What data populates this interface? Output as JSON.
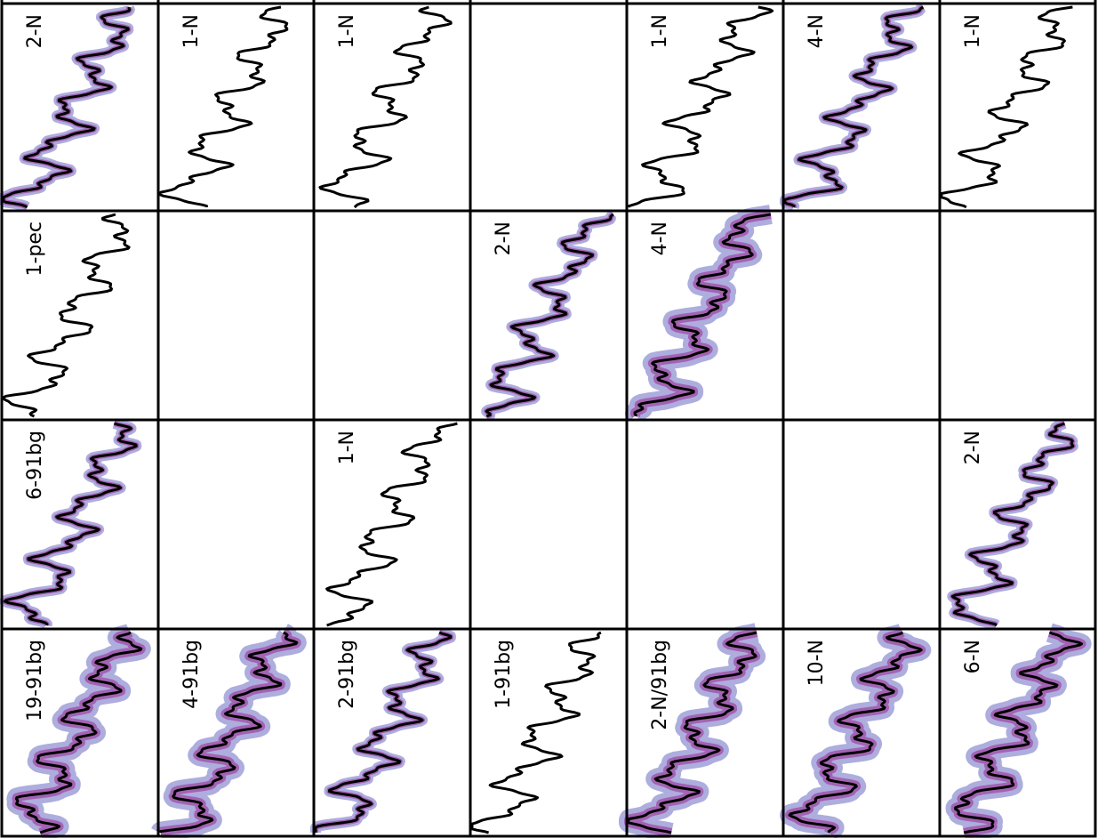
{
  "panels": [
    [
      "2-N",
      "1-N",
      "1-N",
      null,
      "1-N",
      "4-N",
      "1-N"
    ],
    [
      "1-pec",
      null,
      null,
      "2-N",
      "4-N",
      null,
      null
    ],
    [
      "6-91bg",
      null,
      "1-N",
      null,
      null,
      null,
      "2-N"
    ],
    [
      "19-91bg",
      "4-91bg",
      "2-91bg",
      "1-91bg",
      "2-N/91bg",
      "10-N",
      "6-N"
    ]
  ]
}
